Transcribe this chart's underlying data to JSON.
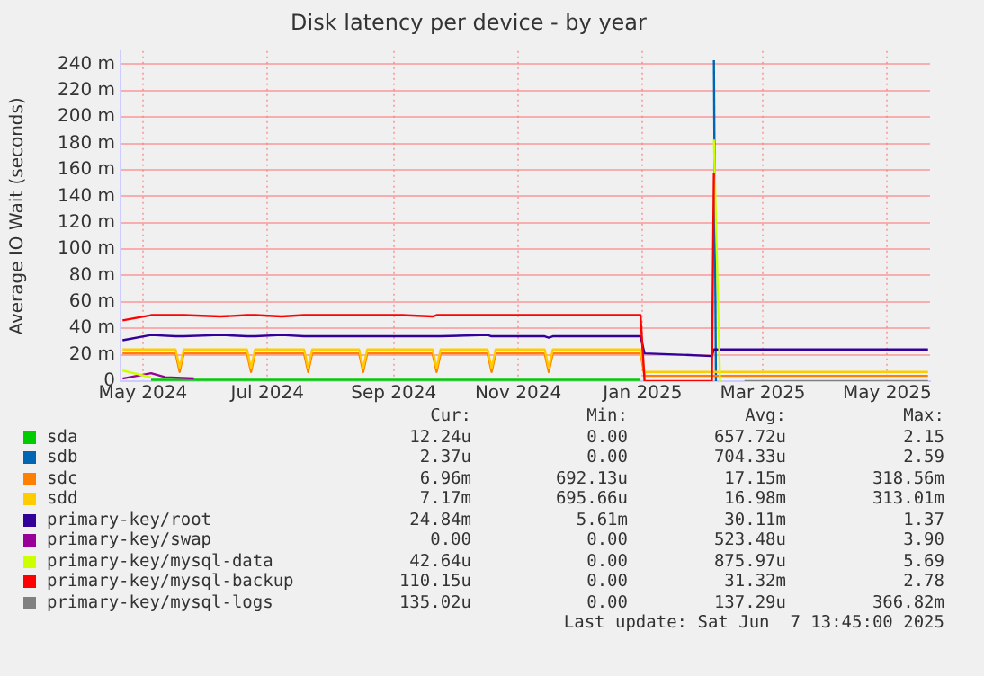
{
  "chart_data": {
    "type": "line",
    "title": "Disk latency per device - by year",
    "ylabel": "Average IO Wait (seconds)",
    "x": [
      "2024-04-21",
      "2024-05-05",
      "2024-05-17",
      "2024-05-19",
      "2024-05-21",
      "2024-06-08",
      "2024-06-21",
      "2024-06-23",
      "2024-06-25",
      "2024-07-08",
      "2024-07-19",
      "2024-07-21",
      "2024-07-23",
      "2024-08-15",
      "2024-08-17",
      "2024-08-19",
      "2024-09-05",
      "2024-09-20",
      "2024-09-22",
      "2024-09-24",
      "2024-10-17",
      "2024-10-19",
      "2024-10-21",
      "2024-11-14",
      "2024-11-16",
      "2024-11-18",
      "2024-12-10",
      "2024-12-31",
      "2025-01-02",
      "2025-01-20",
      "2025-02-04",
      "2025-02-05",
      "2025-02-06",
      "2025-02-20",
      "2025-03-15",
      "2025-04-10",
      "2025-05-01",
      "2025-05-21"
    ],
    "xlim": [
      "2024-04-20",
      "2025-05-22"
    ],
    "xticks": [
      {
        "value": "2024-05-01",
        "label": "May 2024"
      },
      {
        "value": "2024-07-01",
        "label": "Jul 2024"
      },
      {
        "value": "2024-09-01",
        "label": "Sep 2024"
      },
      {
        "value": "2024-11-01",
        "label": "Nov 2024"
      },
      {
        "value": "2025-01-01",
        "label": "Jan 2025"
      },
      {
        "value": "2025-03-01",
        "label": "Mar 2025"
      },
      {
        "value": "2025-05-01",
        "label": "May 2025"
      }
    ],
    "ylim": [
      0,
      250
    ],
    "yticks": [
      0,
      {
        "value": 20,
        "label": "20 m"
      },
      {
        "value": 40,
        "label": "40 m"
      },
      {
        "value": 60,
        "label": "60 m"
      },
      {
        "value": 80,
        "label": "80 m"
      },
      {
        "value": 100,
        "label": "100 m"
      },
      {
        "value": 120,
        "label": "120 m"
      },
      {
        "value": 140,
        "label": "140 m"
      },
      {
        "value": 160,
        "label": "160 m"
      },
      {
        "value": 180,
        "label": "180 m"
      },
      {
        "value": 200,
        "label": "200 m"
      },
      {
        "value": 220,
        "label": "220 m"
      },
      {
        "value": 240,
        "label": "240 m"
      }
    ],
    "grid": true,
    "legend": "bottom",
    "marker": "none",
    "line_style": "solid",
    "series": [
      {
        "name": "sda",
        "color": "#00cc00",
        "values": [
          null,
          1,
          1,
          1,
          1,
          1,
          1,
          1,
          1,
          1,
          1,
          1,
          1,
          1,
          1,
          1,
          1,
          1,
          1,
          1,
          1,
          1,
          1,
          1,
          1,
          1,
          1,
          1,
          null,
          null,
          null,
          null,
          null,
          null,
          null,
          null,
          null,
          null
        ]
      },
      {
        "name": "sdb",
        "color": "#0066b3",
        "x": [
          "2025-02-05",
          "2025-02-06"
        ],
        "values": [
          243,
          0
        ]
      },
      {
        "name": "sdc",
        "color": "#ff8000",
        "values": [
          21,
          21,
          21,
          7,
          21,
          21,
          21,
          7,
          21,
          21,
          21,
          7,
          21,
          21,
          7,
          21,
          21,
          21,
          7,
          21,
          21,
          7,
          21,
          21,
          7,
          21,
          21,
          21,
          4,
          4,
          4,
          4,
          4,
          4,
          4,
          4,
          4,
          4
        ]
      },
      {
        "name": "sdd",
        "color": "#ffcc00",
        "values": [
          24,
          24,
          24,
          10,
          24,
          24,
          24,
          10,
          24,
          24,
          24,
          10,
          24,
          24,
          10,
          24,
          24,
          24,
          10,
          24,
          24,
          10,
          24,
          24,
          10,
          24,
          24,
          24,
          7,
          7,
          7,
          7,
          7,
          7,
          7,
          7,
          7,
          7
        ]
      },
      {
        "name": "primary-key/root",
        "color": "#330099",
        "values": [
          31,
          35,
          34,
          34,
          34,
          35,
          34,
          34,
          34,
          35,
          34,
          34,
          34,
          34,
          34,
          34,
          34,
          34,
          34,
          34,
          35,
          34,
          34,
          34,
          33,
          34,
          34,
          34,
          21,
          20,
          19,
          24,
          24,
          24,
          24,
          24,
          24,
          24
        ]
      },
      {
        "name": "primary-key/swap",
        "color": "#990099",
        "x": [
          "2024-04-21",
          "2024-05-05",
          "2024-05-12",
          "2024-05-26"
        ],
        "values": [
          2,
          6,
          3,
          2
        ]
      },
      {
        "name": "primary-key/mysql-data",
        "color": "#ccff00",
        "x": [
          "2024-04-21",
          "2024-05-05",
          "2024-06-01",
          "2025-02-05",
          "2025-02-08"
        ],
        "values": [
          8,
          3,
          null,
          183,
          0
        ]
      },
      {
        "name": "primary-key/mysql-backup",
        "color": "#ff0000",
        "values": [
          46,
          50,
          50,
          50,
          50,
          49,
          50,
          50,
          50,
          49,
          50,
          50,
          50,
          50,
          50,
          50,
          50,
          49,
          50,
          50,
          50,
          50,
          50,
          50,
          50,
          50,
          50,
          50,
          0,
          0,
          0,
          158,
          null,
          null,
          null,
          null,
          null,
          null
        ]
      },
      {
        "name": "primary-key/mysql-logs",
        "color": "#808080",
        "values": [
          null,
          null,
          null,
          null,
          null,
          null,
          null,
          null,
          null,
          null,
          null,
          null,
          null,
          null,
          null,
          null,
          null,
          null,
          null,
          null,
          null,
          null,
          null,
          null,
          null,
          null,
          null,
          null,
          null,
          null,
          null,
          null,
          null,
          0,
          0,
          0,
          0,
          0
        ]
      }
    ],
    "annotations": [
      "Cur:",
      "Min:",
      "Avg:",
      "Max:",
      "12.24u",
      "0.00",
      "657.72u",
      "2.15",
      "2.37u",
      "0.00",
      "704.33u",
      "2.59",
      "6.96m",
      "692.13u",
      "17.15m",
      "318.56m",
      "7.17m",
      "695.66u",
      "16.98m",
      "313.01m",
      "24.84m",
      "5.61m",
      "30.11m",
      "1.37",
      "0.00",
      "0.00",
      "523.48u",
      "3.90",
      "42.64u",
      "0.00",
      "875.97u",
      "5.69",
      "110.15u",
      "0.00",
      "31.32m",
      "2.78",
      "135.02u",
      "0.00",
      "137.29u",
      "366.82m",
      "Last update: Sat Jun  7 13:45:00 2025"
    ]
  }
}
